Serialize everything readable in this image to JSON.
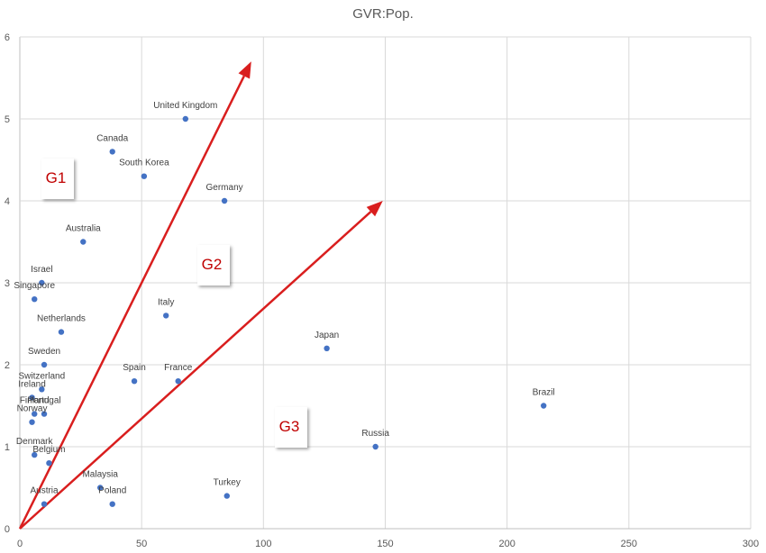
{
  "chart_data": {
    "type": "scatter",
    "title": "GVR:Pop.",
    "xlabel": "",
    "ylabel": "",
    "xlim": [
      0,
      300
    ],
    "ylim": [
      0,
      6
    ],
    "xticks": [
      0,
      50,
      100,
      150,
      200,
      250,
      300
    ],
    "yticks": [
      0,
      1,
      2,
      3,
      4,
      5,
      6
    ],
    "grid": true,
    "color": "#4472c4",
    "points": [
      {
        "label": "United Kingdom",
        "x": 68,
        "y": 5.0
      },
      {
        "label": "Canada",
        "x": 38,
        "y": 4.6
      },
      {
        "label": "South Korea",
        "x": 51,
        "y": 4.3
      },
      {
        "label": "Germany",
        "x": 84,
        "y": 4.0
      },
      {
        "label": "Australia",
        "x": 26,
        "y": 3.5
      },
      {
        "label": "Israel",
        "x": 9,
        "y": 3.0
      },
      {
        "label": "Singapore",
        "x": 6,
        "y": 2.8
      },
      {
        "label": "Netherlands",
        "x": 17,
        "y": 2.4
      },
      {
        "label": "Italy",
        "x": 60,
        "y": 2.6
      },
      {
        "label": "Japan",
        "x": 126,
        "y": 2.2
      },
      {
        "label": "Sweden",
        "x": 10,
        "y": 2.0
      },
      {
        "label": "Switzerland",
        "x": 9,
        "y": 1.7
      },
      {
        "label": "Spain",
        "x": 47,
        "y": 1.8
      },
      {
        "label": "France",
        "x": 65,
        "y": 1.8
      },
      {
        "label": "Ireland",
        "x": 5,
        "y": 1.6
      },
      {
        "label": "Finland",
        "x": 6,
        "y": 1.4
      },
      {
        "label": "Portugal",
        "x": 10,
        "y": 1.4
      },
      {
        "label": "Norway",
        "x": 5,
        "y": 1.3
      },
      {
        "label": "Brazil",
        "x": 215,
        "y": 1.5
      },
      {
        "label": "Russia",
        "x": 146,
        "y": 1.0
      },
      {
        "label": "Denmark",
        "x": 6,
        "y": 0.9
      },
      {
        "label": "Belgium",
        "x": 12,
        "y": 0.8
      },
      {
        "label": "Malaysia",
        "x": 33,
        "y": 0.5
      },
      {
        "label": "Austria",
        "x": 10,
        "y": 0.3
      },
      {
        "label": "Poland",
        "x": 38,
        "y": 0.3
      },
      {
        "label": "Turkey",
        "x": 85,
        "y": 0.4
      }
    ],
    "arrows": [
      {
        "from": [
          0,
          0
        ],
        "to": [
          95,
          5.7
        ],
        "color": "#d91e1e"
      },
      {
        "from": [
          0,
          0
        ],
        "to": [
          149,
          4.0
        ],
        "color": "#d91e1e"
      }
    ],
    "annotations": [
      {
        "text": "G1",
        "color": "#c00000"
      },
      {
        "text": "G2",
        "color": "#c00000"
      },
      {
        "text": "G3",
        "color": "#c00000"
      }
    ]
  }
}
